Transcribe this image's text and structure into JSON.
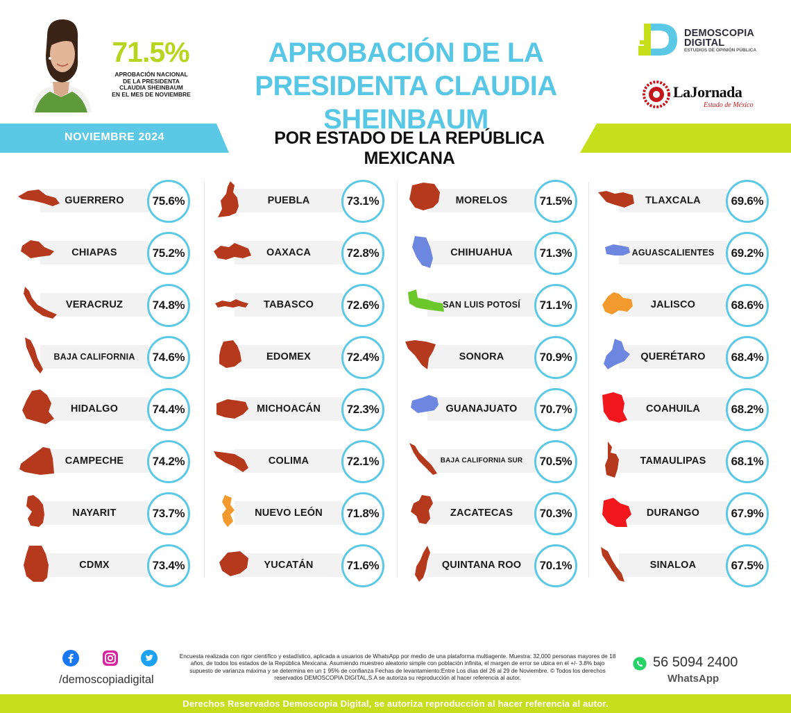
{
  "header": {
    "big_percent": "71.5%",
    "caption": [
      "APROBACIÓN NACIONAL",
      "DE LA PRESIDENTA",
      "CLAUDIA SHEINBAUM",
      "EN EL MES DE NOVIEMBRE"
    ],
    "title_line1": "APROBACIÓN DE LA",
    "title_line2": "PRESIDENTA CLAUDIA SHEINBAUM",
    "brand": {
      "line1": "DEMOSCOPIA",
      "line2": "DIGITAL",
      "tagline": "ESTUDIOS DE OPINIÓN PÚBLICA"
    },
    "newspaper": {
      "name": "LaJornada",
      "sub": "Estado de México"
    }
  },
  "band": {
    "date": "NOVIEMBRE 2024",
    "title": "POR ESTADO DE LA REPÚBLICA MEXICANA"
  },
  "colors": {
    "accent_blue": "#5bc8e5",
    "accent_green": "#c6df1d",
    "state_brown": "#b53a1d",
    "state_blue": "#6d86e0",
    "state_green": "#6cc82a",
    "state_orange": "#f29a2e",
    "state_red": "#f0181c"
  },
  "states": [
    [
      {
        "name": "GUERRERO",
        "value": "75.6%",
        "color": "brown"
      },
      {
        "name": "CHIAPAS",
        "value": "75.2%",
        "color": "brown"
      },
      {
        "name": "VERACRUZ",
        "value": "74.8%",
        "color": "brown"
      },
      {
        "name": "BAJA CALIFORNIA",
        "value": "74.6%",
        "color": "brown"
      },
      {
        "name": "HIDALGO",
        "value": "74.4%",
        "color": "brown"
      },
      {
        "name": "CAMPECHE",
        "value": "74.2%",
        "color": "brown"
      },
      {
        "name": "NAYARIT",
        "value": "73.7%",
        "color": "brown"
      },
      {
        "name": "CDMX",
        "value": "73.4%",
        "color": "brown"
      }
    ],
    [
      {
        "name": "PUEBLA",
        "value": "73.1%",
        "color": "brown"
      },
      {
        "name": "OAXACA",
        "value": "72.8%",
        "color": "brown"
      },
      {
        "name": "TABASCO",
        "value": "72.6%",
        "color": "brown"
      },
      {
        "name": "EDOMEX",
        "value": "72.4%",
        "color": "brown"
      },
      {
        "name": "MICHOACÁN",
        "value": "72.3%",
        "color": "brown"
      },
      {
        "name": "COLIMA",
        "value": "72.1%",
        "color": "brown"
      },
      {
        "name": "NUEVO LEÓN",
        "value": "71.8%",
        "color": "orange"
      },
      {
        "name": "YUCATÁN",
        "value": "71.6%",
        "color": "brown"
      }
    ],
    [
      {
        "name": "MORELOS",
        "value": "71.5%",
        "color": "brown"
      },
      {
        "name": "CHIHUAHUA",
        "value": "71.3%",
        "color": "blue"
      },
      {
        "name": "SAN LUIS POTOSÍ",
        "value": "71.1%",
        "color": "green"
      },
      {
        "name": "SONORA",
        "value": "70.9%",
        "color": "brown"
      },
      {
        "name": "GUANAJUATO",
        "value": "70.7%",
        "color": "blue"
      },
      {
        "name": "BAJA CALIFORNIA SUR",
        "value": "70.5%",
        "color": "brown"
      },
      {
        "name": "ZACATECAS",
        "value": "70.3%",
        "color": "brown"
      },
      {
        "name": "QUINTANA ROO",
        "value": "70.1%",
        "color": "brown"
      }
    ],
    [
      {
        "name": "TLAXCALA",
        "value": "69.6%",
        "color": "brown"
      },
      {
        "name": "AGUASCALIENTES",
        "value": "69.2%",
        "color": "blue"
      },
      {
        "name": "JALISCO",
        "value": "68.6%",
        "color": "orange"
      },
      {
        "name": "QUERÉTARO",
        "value": "68.4%",
        "color": "blue"
      },
      {
        "name": "COAHUILA",
        "value": "68.2%",
        "color": "red"
      },
      {
        "name": "TAMAULIPAS",
        "value": "68.1%",
        "color": "brown"
      },
      {
        "name": "DURANGO",
        "value": "67.9%",
        "color": "red"
      },
      {
        "name": "SINALOA",
        "value": "67.5%",
        "color": "brown"
      }
    ]
  ],
  "footer": {
    "social_handle": "/demoscopiadigital",
    "disclaimer": "Encuesta realizada con rigor científico y estadístico, aplicada a usuarios de WhatsApp por medio de una plataforma multiagente. Muestra: 32,000 personas mayores de 18 años, de todos los estados de la República Mexicana. Asumiendo muestreo aleatorio simple con población infinita, el margen de error se ubica en el +/- 3.8% bajo supuesto de varianza máxima y se determina en un ‡ 95% de confianza Fechas de levantamiento:Entre Los días del 26 al 29 de Noviembre. © Todos los derechos reservados DEMOSCOPIA DIGITAL,S.A se autoriza su reproducción al hacer referencia al autor.",
    "phone": "56 5094 2400",
    "phone_label": "WhatsApp",
    "rights": "Derechos Reservados Demoscopia Digital, se autoriza reproducción al hacer referencia al autor."
  }
}
